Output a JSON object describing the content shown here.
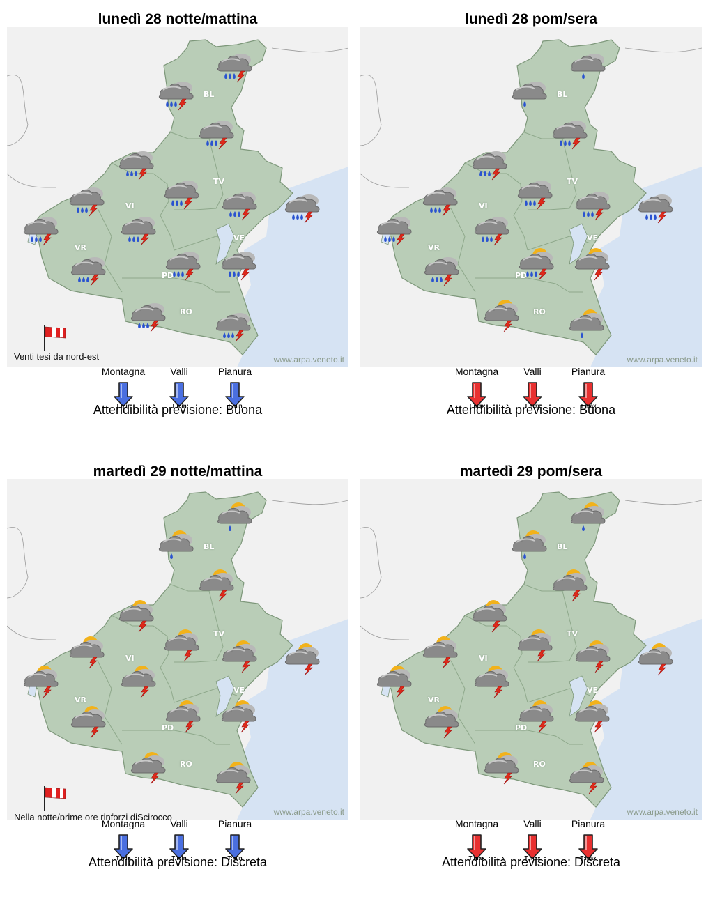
{
  "panels": [
    {
      "title": "lunedì 28 notte/mattina",
      "symbol": "storm-rain",
      "extra_sun_cells": [],
      "wind_note": "Venti tesi da nord-est",
      "temperature": {
        "kind": "min",
        "short_label": "T min",
        "color": "#4a6fe0",
        "zones": [
          "Montagna",
          "Valli",
          "Pianura"
        ]
      },
      "reliability_label": "Attendibilità previsione: Buona",
      "credit": "www.arpa.veneto.it"
    },
    {
      "title": "lunedì 28 pom/sera",
      "symbol": "mixed-afternoon",
      "wind_note": "",
      "temperature": {
        "kind": "max",
        "short_label": "T max",
        "color": "#e83030",
        "zones": [
          "Montagna",
          "Valli",
          "Pianura"
        ]
      },
      "reliability_label": "Attendibilità previsione: Buona",
      "credit": "www.arpa.veneto.it"
    },
    {
      "title": "martedì 29 notte/mattina",
      "symbol": "sun-storm",
      "wind_note": "Nella notte/prime ore rinforzi diScirocco\nsu costa",
      "temperature": {
        "kind": "min",
        "short_label": "T min",
        "color": "#4a6fe0",
        "zones": [
          "Montagna",
          "Valli",
          "Pianura"
        ]
      },
      "reliability_label": "Attendibilità previsione: Discreta",
      "credit": "www.arpa.veneto.it"
    },
    {
      "title": "martedì 29 pom/sera",
      "symbol": "sun-storm",
      "wind_note": "",
      "temperature": {
        "kind": "max",
        "short_label": "T max",
        "color": "#e83030",
        "zones": [
          "Montagna",
          "Valli",
          "Pianura"
        ]
      },
      "reliability_label": "Attendibilità previsione: Discreta",
      "credit": "www.arpa.veneto.it"
    }
  ],
  "provinces": [
    "BL",
    "TV",
    "VI",
    "VR",
    "VE",
    "PD",
    "RO"
  ],
  "colors": {
    "land": "#b9cdb7",
    "sea": "#d6e3f3",
    "outside": "#f1f1f1",
    "cloud": "#8a8a8a",
    "sun": "#f2b21b",
    "rain": "#2a53d0",
    "lightning": "#e02a1a"
  }
}
